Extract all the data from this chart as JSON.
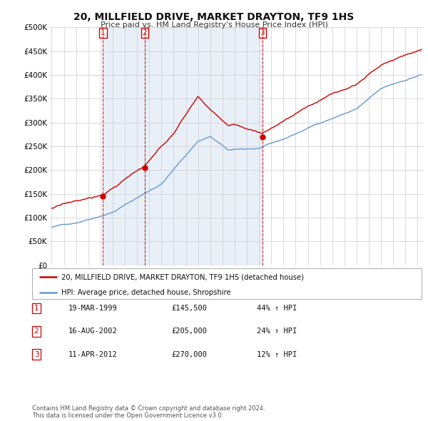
{
  "title": "20, MILLFIELD DRIVE, MARKET DRAYTON, TF9 1HS",
  "subtitle": "Price paid vs. HM Land Registry's House Price Index (HPI)",
  "ylabel_ticks": [
    "£0",
    "£50K",
    "£100K",
    "£150K",
    "£200K",
    "£250K",
    "£300K",
    "£350K",
    "£400K",
    "£450K",
    "£500K"
  ],
  "ytick_vals": [
    0,
    50000,
    100000,
    150000,
    200000,
    250000,
    300000,
    350000,
    400000,
    450000,
    500000
  ],
  "xlim_start": 1994.8,
  "xlim_end": 2025.5,
  "ylim": [
    0,
    500000
  ],
  "sale_dates": [
    1999.21,
    2002.62,
    2012.27
  ],
  "sale_prices": [
    145500,
    205000,
    270000
  ],
  "sale_labels": [
    "1",
    "2",
    "3"
  ],
  "legend_red": "20, MILLFIELD DRIVE, MARKET DRAYTON, TF9 1HS (detached house)",
  "legend_blue": "HPI: Average price, detached house, Shropshire",
  "table_data": [
    [
      "1",
      "19-MAR-1999",
      "£145,500",
      "44% ↑ HPI"
    ],
    [
      "2",
      "16-AUG-2002",
      "£205,000",
      "24% ↑ HPI"
    ],
    [
      "3",
      "11-APR-2012",
      "£270,000",
      "12% ↑ HPI"
    ]
  ],
  "footer": "Contains HM Land Registry data © Crown copyright and database right 2024.\nThis data is licensed under the Open Government Licence v3.0.",
  "red_color": "#cc0000",
  "blue_color": "#6699cc",
  "fill_color": "#ddeeff",
  "vline_color": "#cc0000",
  "background_color": "#ffffff",
  "grid_color": "#cccccc"
}
